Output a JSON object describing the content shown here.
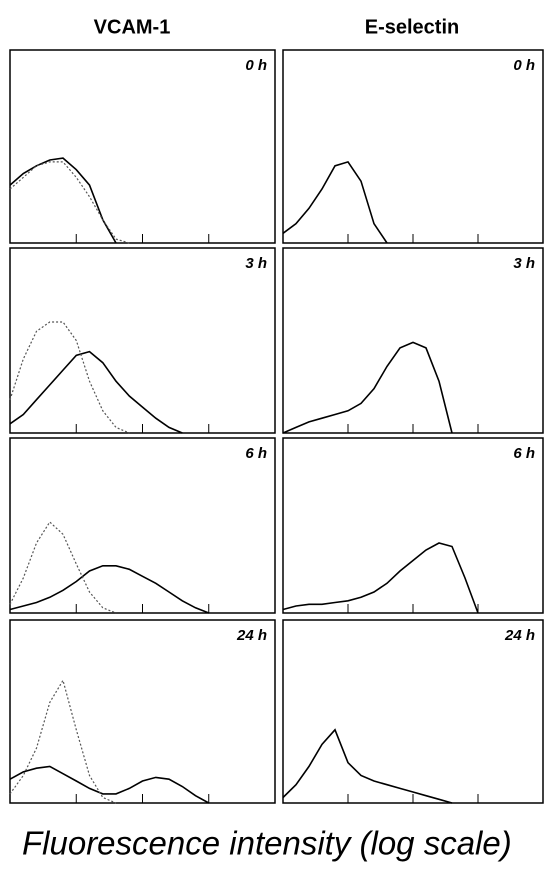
{
  "figure": {
    "columns": [
      "VCAM-1",
      "E-selectin"
    ],
    "xlabel": "Fluorescence intensity (log scale)"
  },
  "chart_data": [
    {
      "type": "line",
      "title": "0 h",
      "x": [
        0,
        5,
        10,
        15,
        20,
        25,
        30,
        35,
        40,
        45,
        50,
        55,
        60,
        65,
        70,
        75,
        80,
        85,
        90,
        95,
        100
      ],
      "xlim": [
        0,
        100
      ],
      "ylim": [
        0,
        100
      ],
      "xticks": [
        25,
        50,
        75
      ],
      "series": [
        {
          "color": "#000000",
          "style": "solid",
          "values": [
            30,
            36,
            40,
            43,
            44,
            38,
            30,
            12,
            0,
            null,
            null,
            null,
            null,
            null,
            null,
            null,
            null,
            null,
            null,
            null,
            null
          ]
        },
        {
          "color": "#555555",
          "style": "dotted",
          "values": [
            28,
            34,
            40,
            42,
            42,
            34,
            24,
            12,
            2,
            0,
            null,
            null,
            null,
            null,
            null,
            null,
            null,
            null,
            null,
            null,
            null
          ]
        }
      ]
    },
    {
      "type": "line",
      "title": "0 h",
      "x": [
        0,
        5,
        10,
        15,
        20,
        25,
        30,
        35,
        40,
        45,
        50,
        55,
        60,
        65,
        70,
        75,
        80,
        85,
        90,
        95,
        100
      ],
      "xlim": [
        0,
        100
      ],
      "ylim": [
        0,
        100
      ],
      "xticks": [
        25,
        50,
        75
      ],
      "series": [
        {
          "color": "#000000",
          "style": "solid",
          "values": [
            5,
            10,
            18,
            28,
            40,
            42,
            32,
            10,
            0,
            null,
            null,
            null,
            null,
            null,
            null,
            null,
            null,
            null,
            null,
            null,
            null
          ]
        }
      ]
    },
    {
      "type": "line",
      "title": "3 h",
      "x": [
        0,
        5,
        10,
        15,
        20,
        25,
        30,
        35,
        40,
        45,
        50,
        55,
        60,
        65,
        70,
        75,
        80,
        85,
        90,
        95,
        100
      ],
      "xlim": [
        0,
        100
      ],
      "ylim": [
        0,
        100
      ],
      "xticks": [
        25,
        50,
        75
      ],
      "series": [
        {
          "color": "#000000",
          "style": "solid",
          "values": [
            5,
            10,
            18,
            26,
            34,
            42,
            44,
            38,
            28,
            20,
            14,
            8,
            3,
            0,
            null,
            null,
            null,
            null,
            null,
            null,
            null
          ]
        },
        {
          "color": "#555555",
          "style": "dotted",
          "values": [
            18,
            40,
            55,
            60,
            60,
            50,
            28,
            12,
            3,
            0,
            null,
            null,
            null,
            null,
            null,
            null,
            null,
            null,
            null,
            null,
            null
          ]
        }
      ]
    },
    {
      "type": "line",
      "title": "3 h",
      "x": [
        0,
        5,
        10,
        15,
        20,
        25,
        30,
        35,
        40,
        45,
        50,
        55,
        60,
        65,
        70,
        75,
        80,
        85,
        90,
        95,
        100
      ],
      "xlim": [
        0,
        100
      ],
      "ylim": [
        0,
        100
      ],
      "xticks": [
        25,
        50,
        75
      ],
      "series": [
        {
          "color": "#000000",
          "style": "solid",
          "values": [
            0,
            3,
            6,
            8,
            10,
            12,
            16,
            24,
            36,
            46,
            49,
            46,
            28,
            0,
            null,
            null,
            null,
            null,
            null,
            null,
            null
          ]
        }
      ]
    },
    {
      "type": "line",
      "title": "6 h",
      "x": [
        0,
        5,
        10,
        15,
        20,
        25,
        30,
        35,
        40,
        45,
        50,
        55,
        60,
        65,
        70,
        75,
        80,
        85,
        90,
        95,
        100
      ],
      "xlim": [
        0,
        100
      ],
      "ylim": [
        0,
        100
      ],
      "xticks": [
        25,
        50,
        75
      ],
      "series": [
        {
          "color": "#000000",
          "style": "solid",
          "values": [
            2,
            4,
            6,
            9,
            13,
            18,
            24,
            27,
            27,
            25,
            21,
            17,
            12,
            7,
            3,
            0,
            null,
            null,
            null,
            null,
            null
          ]
        },
        {
          "color": "#555555",
          "style": "dotted",
          "values": [
            5,
            20,
            40,
            52,
            45,
            28,
            12,
            3,
            0,
            null,
            null,
            null,
            null,
            null,
            null,
            null,
            null,
            null,
            null,
            null,
            null
          ]
        }
      ]
    },
    {
      "type": "line",
      "title": "6 h",
      "x": [
        0,
        5,
        10,
        15,
        20,
        25,
        30,
        35,
        40,
        45,
        50,
        55,
        60,
        65,
        70,
        75,
        80,
        85,
        90,
        95,
        100
      ],
      "xlim": [
        0,
        100
      ],
      "ylim": [
        0,
        100
      ],
      "xticks": [
        25,
        50,
        75
      ],
      "series": [
        {
          "color": "#000000",
          "style": "solid",
          "values": [
            2,
            4,
            5,
            5,
            6,
            7,
            9,
            12,
            17,
            24,
            30,
            36,
            40,
            38,
            20,
            0,
            null,
            null,
            null,
            null,
            null
          ]
        }
      ]
    },
    {
      "type": "line",
      "title": "24 h",
      "x": [
        0,
        5,
        10,
        15,
        20,
        25,
        30,
        35,
        40,
        45,
        50,
        55,
        60,
        65,
        70,
        75,
        80,
        85,
        90,
        95,
        100
      ],
      "xlim": [
        0,
        100
      ],
      "ylim": [
        0,
        100
      ],
      "xticks": [
        25,
        50,
        75
      ],
      "series": [
        {
          "color": "#000000",
          "style": "solid",
          "values": [
            13,
            17,
            19,
            20,
            16,
            12,
            8,
            5,
            5,
            8,
            12,
            14,
            13,
            9,
            4,
            0,
            null,
            null,
            null,
            null,
            null
          ]
        },
        {
          "color": "#555555",
          "style": "dotted",
          "values": [
            5,
            15,
            30,
            55,
            67,
            40,
            15,
            3,
            0,
            null,
            null,
            null,
            null,
            null,
            null,
            null,
            null,
            null,
            null,
            null,
            null
          ]
        }
      ]
    },
    {
      "type": "line",
      "title": "24 h",
      "x": [
        0,
        5,
        10,
        15,
        20,
        25,
        30,
        35,
        40,
        45,
        50,
        55,
        60,
        65,
        70,
        75,
        80,
        85,
        90,
        95,
        100
      ],
      "xlim": [
        0,
        100
      ],
      "ylim": [
        0,
        100
      ],
      "xticks": [
        25,
        50,
        75
      ],
      "series": [
        {
          "color": "#000000",
          "style": "solid",
          "values": [
            3,
            10,
            20,
            32,
            40,
            22,
            15,
            12,
            10,
            8,
            6,
            4,
            2,
            0,
            null,
            null,
            null,
            null,
            null,
            null,
            null
          ]
        }
      ]
    }
  ]
}
